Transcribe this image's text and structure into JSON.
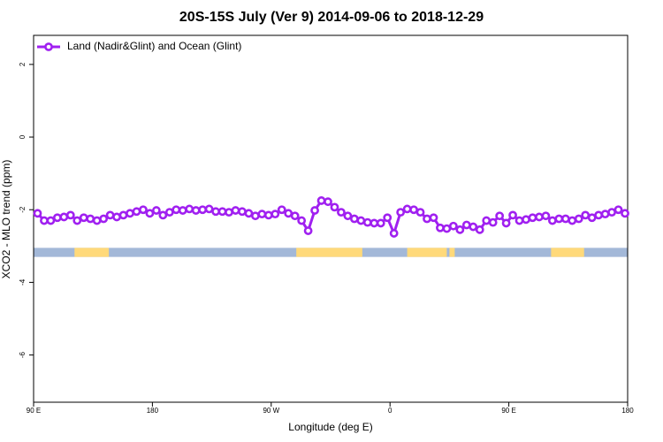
{
  "chart_data": {
    "type": "line",
    "title": "20S-15S July (Ver 9)   2014-09-06 to 2018-12-29",
    "x_label": "Longitude (deg E)",
    "y_label": "XCO2 - MLO trend (ppm)",
    "xlim": [
      90,
      540
    ],
    "xticks": [
      {
        "value": 90,
        "label": "90 E"
      },
      180,
      {
        "value": 270,
        "label": "90 W"
      },
      {
        "value": 360,
        "label": "0"
      },
      {
        "value": 450,
        "label": "90 E"
      },
      {
        "value": 540,
        "label": "180"
      }
    ],
    "ylim": [
      -7.3,
      2.8
    ],
    "yticks": [
      -6,
      -4,
      -2,
      0,
      2
    ],
    "legend_position": "top-left",
    "x": [
      93,
      98,
      103,
      108,
      113,
      118,
      123,
      128,
      133,
      138,
      143,
      148,
      153,
      158,
      163,
      168,
      173,
      178,
      183,
      188,
      193,
      198,
      203,
      208,
      213,
      218,
      223,
      228,
      233,
      238,
      243,
      248,
      253,
      258,
      263,
      268,
      273,
      278,
      283,
      288,
      293,
      298,
      303,
      308,
      313,
      318,
      323,
      328,
      333,
      338,
      343,
      348,
      353,
      358,
      363,
      368,
      373,
      378,
      383,
      388,
      393,
      398,
      403,
      408,
      413,
      418,
      423,
      428,
      433,
      438,
      443,
      448,
      453,
      458,
      463,
      468,
      473,
      478,
      483,
      488,
      493,
      498,
      503,
      508,
      513,
      518,
      523,
      528,
      533,
      538
    ],
    "series": [
      {
        "name": "Land (Nadir&Glint) and Ocean (Glint)",
        "color": "#a020f0",
        "values": [
          -2.1,
          -2.3,
          -2.3,
          -2.22,
          -2.2,
          -2.15,
          -2.3,
          -2.22,
          -2.25,
          -2.3,
          -2.25,
          -2.15,
          -2.2,
          -2.15,
          -2.1,
          -2.05,
          -2.0,
          -2.1,
          -2.02,
          -2.15,
          -2.07,
          -2.0,
          -2.02,
          -1.98,
          -2.02,
          -2.0,
          -1.98,
          -2.05,
          -2.05,
          -2.07,
          -2.02,
          -2.05,
          -2.1,
          -2.17,
          -2.12,
          -2.15,
          -2.12,
          -2.0,
          -2.1,
          -2.17,
          -2.3,
          -2.58,
          -2.02,
          -1.75,
          -1.78,
          -1.93,
          -2.07,
          -2.17,
          -2.25,
          -2.3,
          -2.35,
          -2.37,
          -2.37,
          -2.22,
          -2.65,
          -2.07,
          -1.98,
          -2.0,
          -2.07,
          -2.25,
          -2.22,
          -2.5,
          -2.52,
          -2.45,
          -2.55,
          -2.42,
          -2.47,
          -2.55,
          -2.3,
          -2.35,
          -2.17,
          -2.37,
          -2.15,
          -2.3,
          -2.27,
          -2.22,
          -2.2,
          -2.17,
          -2.3,
          -2.25,
          -2.25,
          -2.3,
          -2.25,
          -2.15,
          -2.22,
          -2.15,
          -2.12,
          -2.07,
          -2.0,
          -2.1
        ]
      }
    ],
    "strip_range": [
      -3.3,
      -3.05
    ],
    "ocean_color": "#a3b8d8",
    "land_color": "#ffd97a",
    "land_segments": [
      [
        121,
        147
      ],
      [
        289,
        339
      ],
      [
        373,
        403
      ],
      [
        405,
        409
      ],
      [
        482,
        507
      ]
    ]
  }
}
